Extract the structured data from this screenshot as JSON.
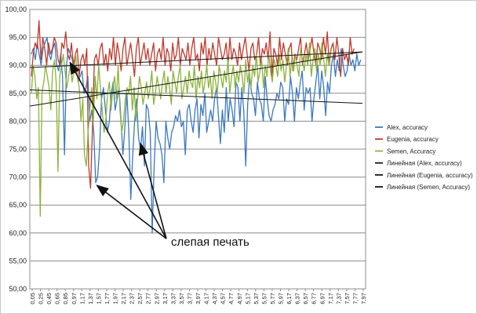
{
  "chart_data": {
    "type": "line",
    "ylim": [
      50,
      100
    ],
    "y_ticks": [
      "50,00",
      "55,00",
      "60,00",
      "65,00",
      "70,00",
      "75,00",
      "80,00",
      "85,00",
      "90,00",
      "95,00",
      "100,00"
    ],
    "x_ticks": [
      "0,05",
      "0,25",
      "0,45",
      "0,65",
      "0,85",
      "0,97",
      "1,17",
      "1,37",
      "1,57",
      "1,77",
      "1,97",
      "2,17",
      "2,37",
      "2,57",
      "2,77",
      "2,97",
      "3,17",
      "3,37",
      "3,57",
      "3,77",
      "3,97",
      "4,17",
      "4,37",
      "4,57",
      "4,77",
      "4,97",
      "5,17",
      "5,37",
      "5,57",
      "5,77",
      "5,97",
      "6,17",
      "6,37",
      "6,57",
      "6,77",
      "6,97",
      "7,17",
      "7,37",
      "7,57",
      "7,77",
      "7,97"
    ],
    "grid": true,
    "legend_position": "right",
    "colors": {
      "alex": "#3a78c2",
      "eugenia": "#c0392b",
      "semen": "#8db33a",
      "trend": "#111111"
    },
    "series": [
      {
        "name": "Alex, accuracy",
        "color": "#3a78c2",
        "values": [
          92,
          93,
          91,
          94,
          92,
          90,
          93,
          94,
          95,
          92,
          91,
          93,
          94,
          90,
          89,
          92,
          88,
          74,
          90,
          93,
          92,
          91,
          89,
          90,
          87,
          88,
          89,
          85,
          86,
          88,
          80,
          82,
          78,
          69,
          70,
          75,
          84,
          86,
          82,
          78,
          80,
          85,
          87,
          82,
          84,
          86,
          80,
          74,
          79,
          85,
          78,
          66,
          74,
          80,
          84,
          77,
          75,
          79,
          72,
          83,
          82,
          78,
          60,
          72,
          80,
          77,
          76,
          74,
          69,
          80,
          77,
          75,
          78,
          79,
          81,
          80,
          82,
          79,
          80,
          74,
          82,
          83,
          80,
          78,
          82,
          84,
          77,
          83,
          81,
          85,
          78,
          80,
          82,
          80,
          84,
          86,
          81,
          76,
          82,
          78,
          86,
          80,
          84,
          82,
          79,
          87,
          86,
          80,
          86,
          82,
          72,
          83,
          88,
          85,
          84,
          81,
          87,
          84,
          83,
          80,
          88,
          84,
          81,
          80,
          82,
          83,
          85,
          84,
          87,
          86,
          80,
          84,
          83,
          88,
          85,
          80,
          86,
          84,
          87,
          89,
          82,
          86,
          85,
          86,
          80,
          84,
          87,
          90,
          84,
          89,
          86,
          81,
          87,
          85,
          90,
          92,
          88,
          91,
          89,
          93,
          90,
          88,
          89,
          92,
          90,
          91,
          89,
          92,
          90,
          91
        ]
      },
      {
        "name": "Eugenia, accuracy",
        "color": "#c0392b",
        "values": [
          88,
          92,
          94,
          93,
          98,
          91,
          95,
          93,
          90,
          94,
          92,
          93,
          95,
          94,
          91,
          90,
          94,
          93,
          96,
          92,
          91,
          94,
          90,
          92,
          93,
          88,
          91,
          92,
          90,
          93,
          72,
          68,
          79,
          91,
          92,
          90,
          93,
          94,
          90,
          92,
          89,
          93,
          91,
          95,
          90,
          94,
          92,
          89,
          93,
          95,
          90,
          92,
          94,
          91,
          88,
          93,
          95,
          90,
          92,
          94,
          91,
          93,
          90,
          92,
          94,
          89,
          92,
          93,
          91,
          95,
          90,
          93,
          92,
          89,
          94,
          91,
          92,
          95,
          90,
          93,
          92,
          91,
          94,
          90,
          93,
          95,
          91,
          92,
          89,
          94,
          92,
          95,
          90,
          93,
          91,
          94,
          92,
          90,
          95,
          93,
          91,
          92,
          94,
          90,
          95,
          91,
          93,
          92,
          90,
          94,
          91,
          93,
          95,
          92,
          89,
          93,
          94,
          91,
          92,
          95,
          90,
          93,
          92,
          94,
          91,
          96,
          88,
          93,
          92,
          90,
          95,
          91,
          94,
          92,
          90,
          93,
          94,
          89,
          92,
          91,
          93,
          95,
          90,
          92,
          94,
          91,
          93,
          95,
          92,
          90,
          94,
          93,
          91,
          95,
          92,
          96,
          90,
          93,
          94,
          91,
          95,
          92,
          88,
          93,
          91,
          92,
          90,
          95,
          92,
          93
        ]
      },
      {
        "name": "Semen, Accuracy",
        "color": "#8db33a",
        "values": [
          85,
          90,
          88,
          84,
          86,
          63,
          85,
          87,
          90,
          88,
          86,
          82,
          89,
          91,
          87,
          71,
          88,
          90,
          92,
          89,
          86,
          88,
          90,
          87,
          89,
          92,
          88,
          86,
          80,
          84,
          74,
          72,
          78,
          82,
          86,
          80,
          88,
          84,
          90,
          86,
          82,
          78,
          80,
          85,
          87,
          82,
          86,
          88,
          84,
          90,
          82,
          78,
          80,
          84,
          86,
          85,
          88,
          82,
          86,
          80,
          84,
          88,
          86,
          83,
          85,
          87,
          84,
          86,
          89,
          83,
          85,
          88,
          86,
          84,
          87,
          89,
          85,
          88,
          86,
          83,
          89,
          87,
          85,
          88,
          90,
          84,
          86,
          88,
          85,
          89,
          87,
          86,
          90,
          84,
          88,
          86,
          89,
          85,
          87,
          90,
          86,
          88,
          84,
          89,
          87,
          85,
          90,
          88,
          86,
          89,
          87,
          91,
          85,
          88,
          90,
          86,
          89,
          87,
          90,
          88,
          85,
          91,
          87,
          89,
          86,
          90,
          88,
          92,
          87,
          89,
          91,
          86,
          90,
          88,
          92,
          89,
          87,
          91,
          90,
          88,
          92,
          89,
          91,
          87,
          90,
          93,
          88,
          91,
          89,
          92,
          90,
          88,
          93,
          91,
          89,
          92,
          90,
          94,
          88,
          91,
          93,
          89,
          92,
          90,
          94,
          91,
          88,
          92,
          90,
          93
        ]
      },
      {
        "name": "Линейная (Alex, accuracy)",
        "color": "#111111"
      },
      {
        "name": "Линейная (Eugenia, accuracy)",
        "color": "#111111"
      },
      {
        "name": "Линейная (Semen, Accuracy)",
        "color": "#111111"
      }
    ],
    "trendlines": [
      {
        "from": 89.6,
        "to": 92.4
      },
      {
        "from": 85.6,
        "to": 83.2
      },
      {
        "from": 82.7,
        "to": 92.4
      }
    ],
    "annotation": {
      "text": "слепая печать",
      "arrow_targets": [
        {
          "x_fraction": 0.12,
          "y": 90.5
        },
        {
          "x_fraction": 0.2,
          "y": 68.5
        },
        {
          "x_fraction": 0.33,
          "y": 76.0
        }
      ]
    }
  }
}
